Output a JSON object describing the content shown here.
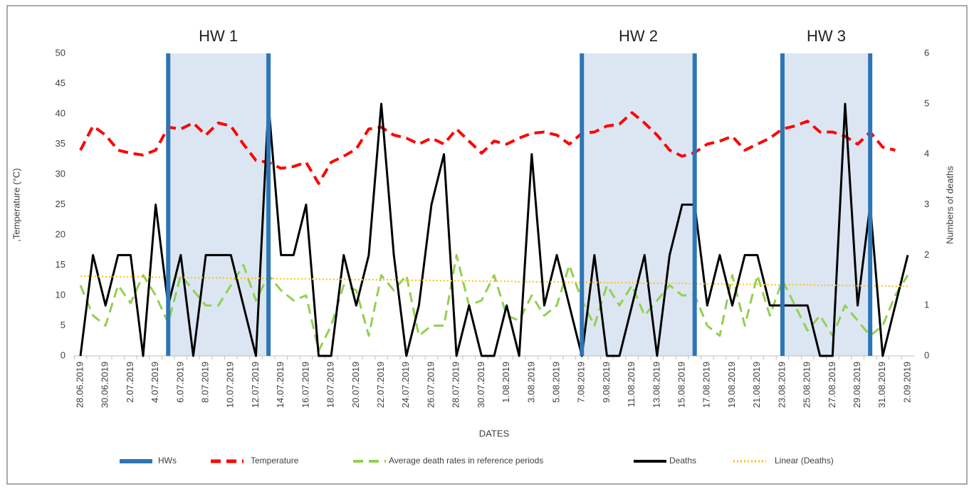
{
  "chart_data": {
    "type": "line",
    "x_label": "DATES",
    "y_label": ",Temperature (°C)",
    "y2_label": "Numbers of deaths",
    "categories": [
      "28.06.2019",
      null,
      "30.06.2019",
      null,
      "2.07.2019",
      null,
      "4.07.2019",
      null,
      "6.07.2019",
      null,
      "8.07.2019",
      null,
      "10.07.2019",
      null,
      "12.07.2019",
      null,
      "14.07.2019",
      null,
      "16.07.2019",
      null,
      "18.07.2019",
      null,
      "20.07.2019",
      null,
      "22.07.2019",
      null,
      "24.07.2019",
      null,
      "26.07.2019",
      null,
      "28.07.2019",
      null,
      "30.07.2019",
      null,
      "1.08.2019",
      null,
      "3.08.2019",
      null,
      "5.08.2019",
      null,
      "7.08.2019",
      null,
      "9.08.2019",
      null,
      "11.08.2019",
      null,
      "13.08.2019",
      null,
      "15.08.2019",
      null,
      "17.08.2019",
      null,
      "19.08.2019",
      null,
      "21.08.2019",
      null,
      "23.08.2019",
      null,
      "25.08.2019",
      null,
      "27.08.2019",
      null,
      "29.08.2019",
      null,
      "31.08.2019",
      null,
      "2.09.2019"
    ],
    "ylim": [
      0,
      50
    ],
    "yticks": [
      0,
      5,
      10,
      15,
      20,
      25,
      30,
      35,
      40,
      45,
      50
    ],
    "y2lim": [
      0,
      6
    ],
    "y2ticks": [
      0,
      1,
      2,
      3,
      4,
      5,
      6
    ],
    "heat_waves": {
      "name": "HWs",
      "color": "#2e75b6",
      "fill": "#dce6f2",
      "periods": [
        {
          "label": "HW 1",
          "start": 7,
          "end": 15
        },
        {
          "label": "HW 2",
          "start": 40,
          "end": 49
        },
        {
          "label": "HW 3",
          "start": 56,
          "end": 63
        }
      ]
    },
    "series": [
      {
        "name": "Temperature",
        "color": "#ff0000",
        "dash": "dashed",
        "width": 4,
        "values": [
          34,
          38,
          36.5,
          34,
          33.5,
          33.2,
          34,
          37.8,
          37.5,
          38.5,
          36.5,
          38.5,
          38,
          35,
          32.3,
          32,
          31,
          31.3,
          32,
          28.5,
          32,
          33,
          34.2,
          37.5,
          37.8,
          36.5,
          36,
          35,
          36,
          35,
          37.5,
          35.5,
          33.5,
          35.5,
          35,
          36,
          36.8,
          37,
          36.5,
          35,
          36.8,
          37,
          38,
          38.3,
          40.2,
          38.5,
          36.5,
          34,
          33,
          33.6,
          35,
          35.5,
          36.3,
          34,
          35,
          36,
          37.5,
          38,
          38.8,
          37,
          37,
          36.3,
          35,
          37,
          34.5,
          34,
          null
        ]
      },
      {
        "name": "Average death rates in reference periods",
        "color": "#92d050",
        "dash": "dashed",
        "width": 3,
        "axis": "y2",
        "values": [
          1.4,
          0.8,
          0.6,
          1.4,
          1.05,
          1.6,
          1.2,
          0.65,
          1.6,
          1.3,
          1.0,
          1.0,
          1.4,
          1.8,
          1.1,
          1.6,
          1.3,
          1.1,
          1.2,
          0.1,
          0.6,
          1.4,
          1.3,
          0.4,
          1.6,
          1.3,
          1.6,
          0.4,
          0.6,
          0.6,
          2.0,
          1.0,
          1.1,
          1.6,
          0.8,
          0.7,
          1.2,
          0.8,
          1.0,
          1.8,
          1.1,
          0.6,
          1.4,
          1.0,
          1.4,
          0.8,
          1.1,
          1.4,
          1.2,
          1.2,
          0.6,
          0.4,
          1.6,
          0.6,
          1.6,
          0.8,
          1.5,
          1.0,
          0.5,
          0.8,
          0.4,
          1.0,
          0.7,
          0.4,
          0.6,
          1.2,
          1.6
        ]
      },
      {
        "name": "Deaths",
        "color": "#000000",
        "dash": "solid",
        "width": 3,
        "axis": "y2",
        "values": [
          0,
          2,
          1,
          2,
          2,
          0,
          3,
          1,
          2,
          0,
          2,
          2,
          2,
          1,
          0,
          5,
          2,
          2,
          3,
          0,
          0,
          2,
          1,
          2,
          5,
          2,
          0,
          1,
          3,
          4,
          0,
          1,
          0,
          0,
          1,
          0,
          4,
          1,
          2,
          1,
          0,
          2,
          0,
          0,
          1,
          2,
          0,
          2,
          3,
          3,
          1,
          2,
          1,
          2,
          2,
          1,
          1,
          1,
          1,
          0,
          0,
          5,
          1,
          3,
          0,
          1,
          2
        ]
      },
      {
        "name": "Linear (Deaths)",
        "color": "#ffc000",
        "dash": "dotted",
        "width": 2,
        "axis": "y2",
        "values": [
          1.58,
          1.58,
          1.57,
          1.57,
          1.57,
          1.57,
          1.56,
          1.56,
          1.56,
          1.55,
          1.55,
          1.55,
          1.54,
          1.54,
          1.54,
          1.54,
          1.53,
          1.53,
          1.53,
          1.52,
          1.52,
          1.52,
          1.51,
          1.51,
          1.51,
          1.51,
          1.5,
          1.5,
          1.5,
          1.49,
          1.49,
          1.49,
          1.48,
          1.48,
          1.48,
          1.47,
          1.47,
          1.47,
          1.47,
          1.46,
          1.46,
          1.46,
          1.45,
          1.45,
          1.45,
          1.44,
          1.44,
          1.44,
          1.44,
          1.43,
          1.43,
          1.43,
          1.42,
          1.42,
          1.42,
          1.41,
          1.41,
          1.41,
          1.41,
          1.4,
          1.4,
          1.4,
          1.39,
          1.39,
          1.39,
          1.38,
          1.38
        ]
      }
    ]
  }
}
